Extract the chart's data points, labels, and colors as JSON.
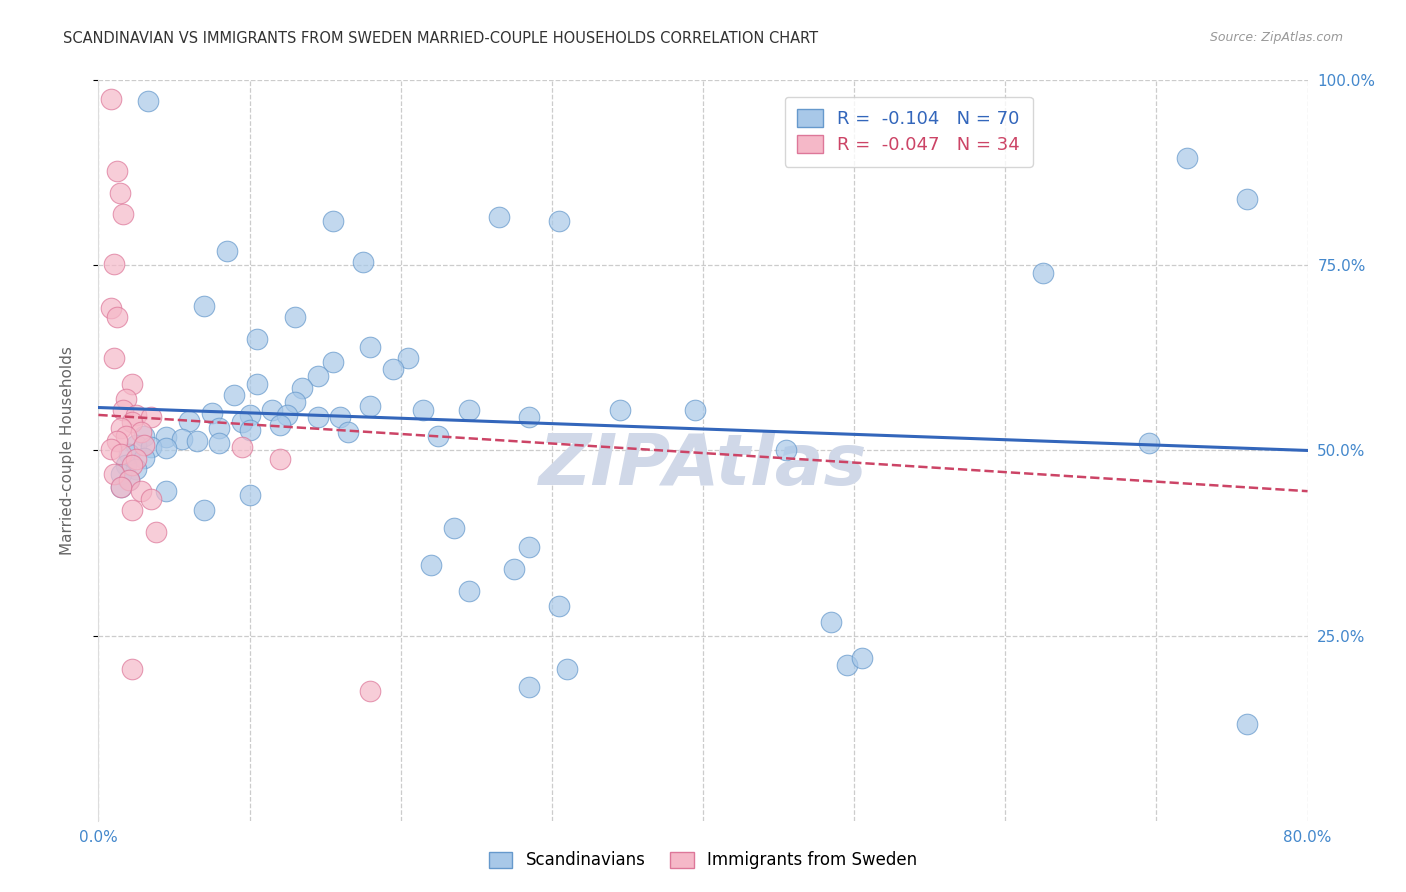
{
  "title": "SCANDINAVIAN VS IMMIGRANTS FROM SWEDEN MARRIED-COUPLE HOUSEHOLDS CORRELATION CHART",
  "source": "Source: ZipAtlas.com",
  "ylabel": "Married-couple Households",
  "xlim": [
    0.0,
    0.8
  ],
  "ylim": [
    0.0,
    1.0
  ],
  "xticks": [
    0.0,
    0.1,
    0.2,
    0.3,
    0.4,
    0.5,
    0.6,
    0.7,
    0.8
  ],
  "xticklabels": [
    "0.0%",
    "",
    "",
    "",
    "",
    "",
    "",
    "",
    "80.0%"
  ],
  "ytick_positions": [
    0.25,
    0.5,
    0.75,
    1.0
  ],
  "ytick_labels": [
    "25.0%",
    "50.0%",
    "75.0%",
    "100.0%"
  ],
  "blue_R": "-0.104",
  "blue_N": "70",
  "pink_R": "-0.047",
  "pink_N": "34",
  "legend_label_blue": "Scandinavians",
  "legend_label_pink": "Immigrants from Sweden",
  "watermark": "ZIPAtlas",
  "blue_scatter": [
    [
      0.033,
      0.972
    ],
    [
      0.155,
      0.81
    ],
    [
      0.265,
      0.815
    ],
    [
      0.305,
      0.81
    ],
    [
      0.72,
      0.895
    ],
    [
      0.76,
      0.84
    ],
    [
      0.085,
      0.77
    ],
    [
      0.175,
      0.755
    ],
    [
      0.625,
      0.74
    ],
    [
      0.07,
      0.695
    ],
    [
      0.13,
      0.68
    ],
    [
      0.105,
      0.65
    ],
    [
      0.18,
      0.64
    ],
    [
      0.205,
      0.625
    ],
    [
      0.155,
      0.62
    ],
    [
      0.195,
      0.61
    ],
    [
      0.145,
      0.6
    ],
    [
      0.105,
      0.59
    ],
    [
      0.135,
      0.585
    ],
    [
      0.09,
      0.575
    ],
    [
      0.13,
      0.565
    ],
    [
      0.18,
      0.56
    ],
    [
      0.115,
      0.555
    ],
    [
      0.215,
      0.555
    ],
    [
      0.245,
      0.555
    ],
    [
      0.345,
      0.555
    ],
    [
      0.395,
      0.555
    ],
    [
      0.075,
      0.55
    ],
    [
      0.1,
      0.548
    ],
    [
      0.125,
      0.548
    ],
    [
      0.145,
      0.545
    ],
    [
      0.16,
      0.545
    ],
    [
      0.285,
      0.545
    ],
    [
      0.06,
      0.54
    ],
    [
      0.095,
      0.538
    ],
    [
      0.12,
      0.535
    ],
    [
      0.08,
      0.53
    ],
    [
      0.1,
      0.528
    ],
    [
      0.165,
      0.525
    ],
    [
      0.225,
      0.52
    ],
    [
      0.03,
      0.52
    ],
    [
      0.045,
      0.518
    ],
    [
      0.055,
      0.515
    ],
    [
      0.065,
      0.513
    ],
    [
      0.08,
      0.51
    ],
    [
      0.025,
      0.508
    ],
    [
      0.035,
      0.505
    ],
    [
      0.045,
      0.503
    ],
    [
      0.695,
      0.51
    ],
    [
      0.455,
      0.5
    ],
    [
      0.02,
      0.495
    ],
    [
      0.03,
      0.49
    ],
    [
      0.018,
      0.48
    ],
    [
      0.025,
      0.475
    ],
    [
      0.015,
      0.468
    ],
    [
      0.02,
      0.46
    ],
    [
      0.015,
      0.45
    ],
    [
      0.045,
      0.445
    ],
    [
      0.1,
      0.44
    ],
    [
      0.07,
      0.42
    ],
    [
      0.235,
      0.395
    ],
    [
      0.285,
      0.37
    ],
    [
      0.22,
      0.345
    ],
    [
      0.275,
      0.34
    ],
    [
      0.245,
      0.31
    ],
    [
      0.305,
      0.29
    ],
    [
      0.31,
      0.205
    ],
    [
      0.285,
      0.18
    ],
    [
      0.485,
      0.268
    ],
    [
      0.495,
      0.21
    ],
    [
      0.505,
      0.22
    ],
    [
      0.76,
      0.13
    ]
  ],
  "pink_scatter": [
    [
      0.008,
      0.975
    ],
    [
      0.012,
      0.878
    ],
    [
      0.014,
      0.848
    ],
    [
      0.016,
      0.82
    ],
    [
      0.01,
      0.752
    ],
    [
      0.008,
      0.692
    ],
    [
      0.012,
      0.68
    ],
    [
      0.01,
      0.625
    ],
    [
      0.022,
      0.59
    ],
    [
      0.018,
      0.57
    ],
    [
      0.016,
      0.555
    ],
    [
      0.025,
      0.548
    ],
    [
      0.035,
      0.545
    ],
    [
      0.022,
      0.538
    ],
    [
      0.015,
      0.53
    ],
    [
      0.028,
      0.525
    ],
    [
      0.018,
      0.52
    ],
    [
      0.012,
      0.513
    ],
    [
      0.03,
      0.508
    ],
    [
      0.008,
      0.502
    ],
    [
      0.015,
      0.495
    ],
    [
      0.025,
      0.488
    ],
    [
      0.022,
      0.48
    ],
    [
      0.01,
      0.468
    ],
    [
      0.02,
      0.46
    ],
    [
      0.015,
      0.45
    ],
    [
      0.028,
      0.445
    ],
    [
      0.035,
      0.435
    ],
    [
      0.022,
      0.42
    ],
    [
      0.038,
      0.39
    ],
    [
      0.095,
      0.505
    ],
    [
      0.12,
      0.488
    ],
    [
      0.022,
      0.205
    ],
    [
      0.18,
      0.175
    ]
  ],
  "blue_line_x": [
    0.0,
    0.8
  ],
  "blue_line_y": [
    0.558,
    0.5
  ],
  "pink_line_x": [
    0.0,
    0.8
  ],
  "pink_line_y": [
    0.548,
    0.445
  ],
  "blue_color": "#a8c8e8",
  "pink_color": "#f5b8c8",
  "blue_edge_color": "#6699cc",
  "pink_edge_color": "#dd7799",
  "blue_line_color": "#3366bb",
  "pink_line_color": "#cc4466",
  "bg_color": "#ffffff",
  "grid_color": "#cccccc",
  "title_color": "#333333",
  "axis_color": "#4488cc",
  "watermark_color": "#d0d8e8"
}
